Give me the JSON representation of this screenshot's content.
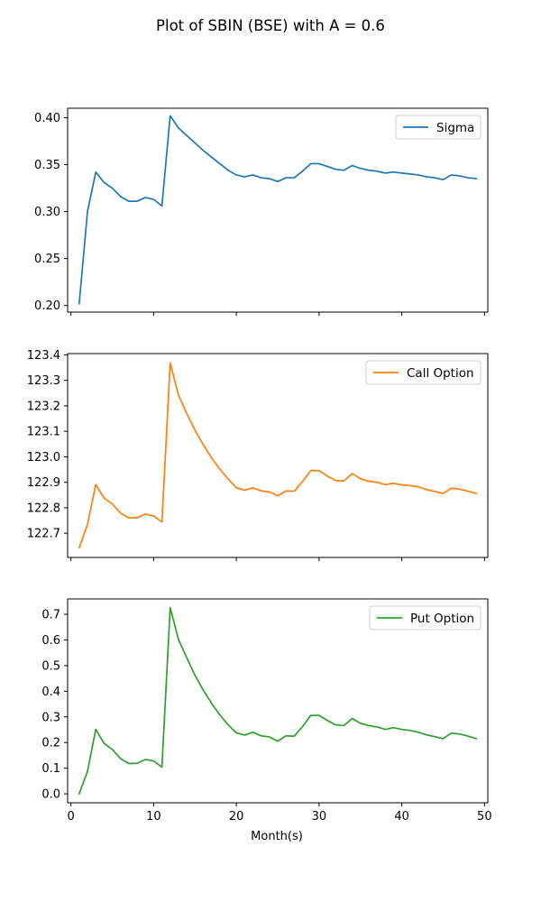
{
  "chart_data": {
    "type": "line",
    "title": "Plot of SBIN (BSE) with A = 0.6",
    "xlabel": "Month(s)",
    "x_ticks": [
      0,
      10,
      20,
      30,
      40,
      50
    ],
    "xlim": [
      -0.4,
      50.4
    ],
    "x": [
      1,
      2,
      3,
      4,
      5,
      6,
      7,
      8,
      9,
      10,
      11,
      12,
      13,
      14,
      15,
      16,
      17,
      18,
      19,
      20,
      21,
      22,
      23,
      24,
      25,
      26,
      27,
      28,
      29,
      30,
      31,
      32,
      33,
      34,
      35,
      36,
      37,
      38,
      39,
      40,
      41,
      42,
      43,
      44,
      45,
      46,
      47,
      48,
      49
    ],
    "grid": false,
    "shared_x": true,
    "panels": [
      {
        "series_name": "Sigma",
        "color": "#1f77b4",
        "legend_position": "top-right",
        "ylim": [
          0.193,
          0.41
        ],
        "y_ticks": [
          0.2,
          0.25,
          0.3,
          0.35,
          0.4
        ],
        "y_tick_labels": [
          "0.20",
          "0.25",
          "0.30",
          "0.35",
          "0.40"
        ],
        "values": [
          0.202,
          0.3,
          0.342,
          0.331,
          0.325,
          0.316,
          0.311,
          0.311,
          0.315,
          0.313,
          0.306,
          0.402,
          0.389,
          0.381,
          0.373,
          0.365,
          0.358,
          0.351,
          0.344,
          0.339,
          0.337,
          0.339,
          0.336,
          0.335,
          0.332,
          0.336,
          0.336,
          0.343,
          0.351,
          0.351,
          0.348,
          0.345,
          0.344,
          0.349,
          0.346,
          0.344,
          0.343,
          0.341,
          0.342,
          0.341,
          0.34,
          0.339,
          0.337,
          0.336,
          0.334,
          0.339,
          0.338,
          0.336,
          0.335
        ]
      },
      {
        "series_name": "Call Option",
        "color": "#ff7f0e",
        "legend_position": "top-right",
        "ylim": [
          122.605,
          123.405
        ],
        "y_ticks": [
          122.7,
          122.8,
          122.9,
          123.0,
          123.1,
          123.2,
          123.3,
          123.4
        ],
        "y_tick_labels": [
          "122.7",
          "122.8",
          "122.9",
          "123.0",
          "123.1",
          "123.2",
          "123.3",
          "123.4"
        ],
        "values": [
          122.643,
          122.734,
          122.891,
          122.838,
          122.815,
          122.779,
          122.76,
          122.761,
          122.775,
          122.768,
          122.744,
          123.368,
          123.242,
          123.17,
          123.104,
          123.047,
          122.996,
          122.951,
          122.913,
          122.878,
          122.869,
          122.878,
          122.866,
          122.862,
          122.847,
          122.866,
          122.865,
          122.903,
          122.946,
          122.946,
          122.924,
          122.907,
          122.905,
          122.934,
          122.914,
          122.904,
          122.9,
          122.891,
          122.896,
          122.89,
          122.887,
          122.882,
          122.871,
          122.864,
          122.856,
          122.877,
          122.873,
          122.865,
          122.856
        ]
      },
      {
        "series_name": "Put Option",
        "color": "#2ca02c",
        "legend_position": "top-right",
        "ylim": [
          -0.035,
          0.76
        ],
        "y_ticks": [
          0.0,
          0.1,
          0.2,
          0.3,
          0.4,
          0.5,
          0.6,
          0.7
        ],
        "y_tick_labels": [
          "0.0",
          "0.1",
          "0.2",
          "0.3",
          "0.4",
          "0.5",
          "0.6",
          "0.7"
        ],
        "values": [
          0.0,
          0.088,
          0.251,
          0.197,
          0.173,
          0.137,
          0.118,
          0.119,
          0.134,
          0.128,
          0.104,
          0.726,
          0.602,
          0.531,
          0.462,
          0.404,
          0.353,
          0.308,
          0.269,
          0.238,
          0.229,
          0.24,
          0.226,
          0.222,
          0.205,
          0.226,
          0.225,
          0.262,
          0.306,
          0.306,
          0.286,
          0.269,
          0.266,
          0.294,
          0.275,
          0.266,
          0.261,
          0.251,
          0.258,
          0.251,
          0.247,
          0.24,
          0.23,
          0.223,
          0.215,
          0.237,
          0.233,
          0.225,
          0.215
        ]
      }
    ]
  }
}
